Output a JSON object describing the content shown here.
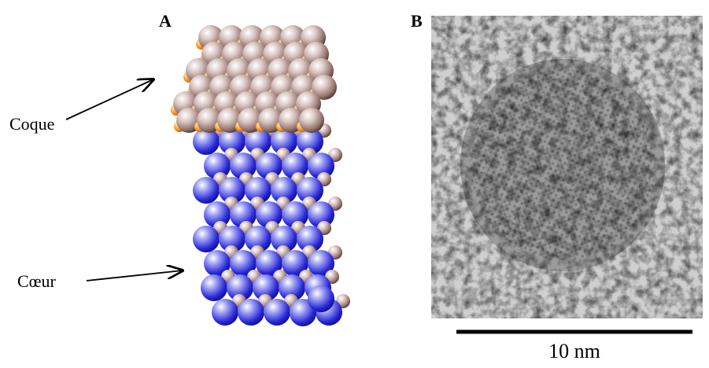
{
  "panels": [
    {
      "label": "A"
    },
    {
      "label": "B"
    }
  ],
  "annotations": [
    {
      "label": "Coque"
    },
    {
      "label": "Cœur"
    }
  ],
  "scale_bar": {
    "label": "10 nm"
  }
}
